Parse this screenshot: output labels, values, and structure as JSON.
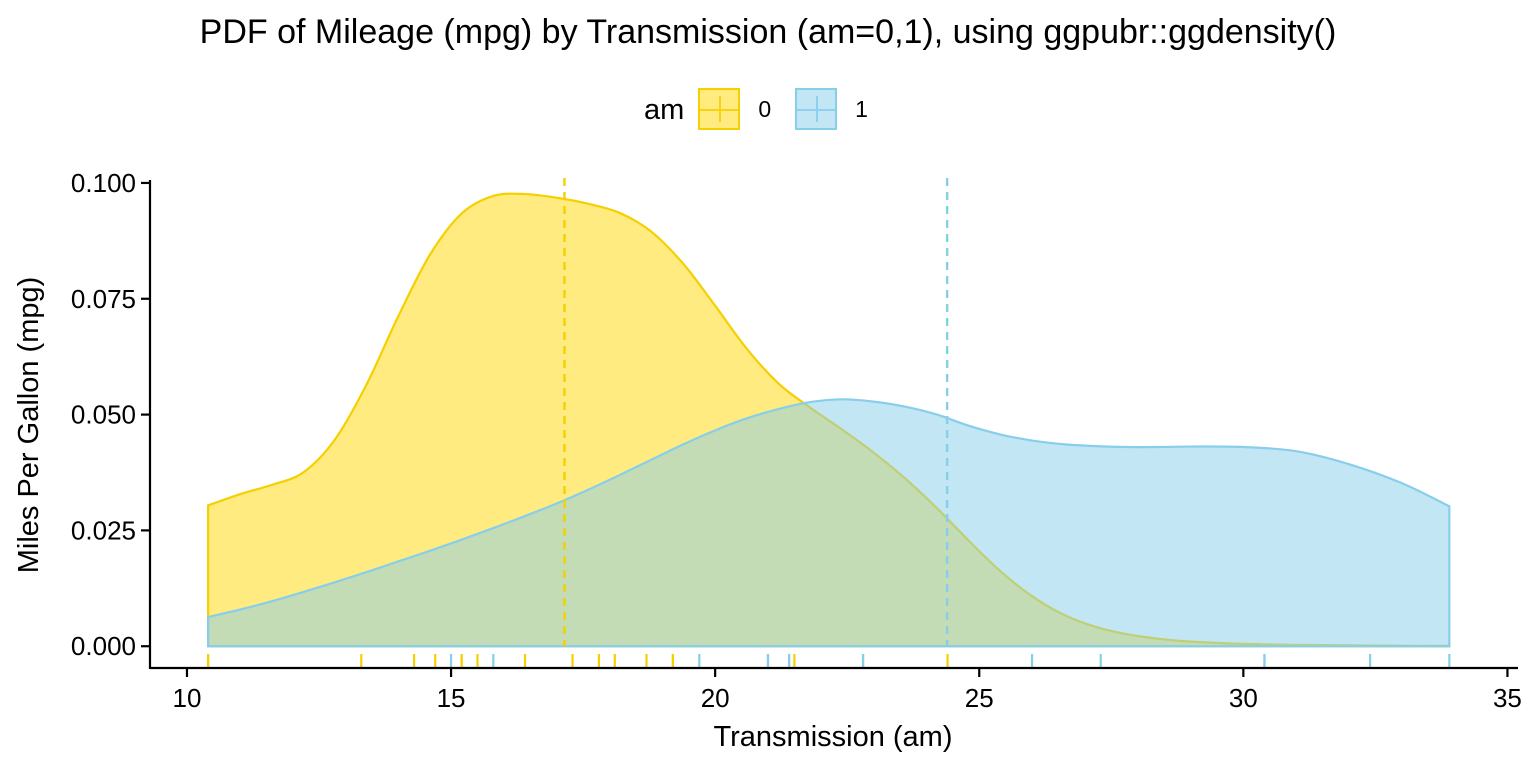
{
  "chart_data": {
    "type": "area",
    "title": "PDF of Mileage (mpg) by Transmission (am=0,1), using ggpubr::ggdensity()",
    "xlabel": "Transmission (am)",
    "ylabel": "Miles Per Gallon (mpg)",
    "xlim": [
      9.3,
      35.2
    ],
    "ylim": [
      -0.0047,
      0.1015
    ],
    "x_ticks": [
      10,
      15,
      20,
      25,
      30,
      35
    ],
    "x_tick_labels": [
      "10",
      "15",
      "20",
      "25",
      "30",
      "35"
    ],
    "y_ticks": [
      0,
      0.025,
      0.05,
      0.075,
      0.1
    ],
    "y_tick_labels": [
      "0.000",
      "0.025",
      "0.050",
      "0.075",
      "0.100"
    ],
    "legend": {
      "title": "am",
      "position": "top"
    },
    "grid": false,
    "series": [
      {
        "name": "0",
        "color": "#F5D000",
        "fill": "#FFD700",
        "mean": 17.147,
        "x": [
          10.4,
          11,
          11.6,
          12.2,
          12.8,
          13.4,
          14,
          14.6,
          15.2,
          15.8,
          16.4,
          17,
          17.6,
          18.2,
          18.8,
          19.4,
          20,
          20.6,
          21.2,
          21.8,
          22.4,
          23,
          23.6,
          24.2,
          24.8,
          25.4,
          26,
          26.6,
          27.2,
          27.8,
          28.4,
          29,
          30,
          31,
          32,
          33,
          33.9
        ],
        "y": [
          0.0304,
          0.0328,
          0.0348,
          0.0375,
          0.0446,
          0.0565,
          0.0712,
          0.0845,
          0.0934,
          0.0972,
          0.0976,
          0.0968,
          0.0955,
          0.0935,
          0.0894,
          0.0825,
          0.0735,
          0.0642,
          0.0567,
          0.0515,
          0.0468,
          0.0418,
          0.0362,
          0.0298,
          0.0228,
          0.0162,
          0.0108,
          0.0068,
          0.0042,
          0.0026,
          0.0016,
          0.001,
          0.0005,
          0.0003,
          0.0002,
          0.0001,
          0.0001
        ]
      },
      {
        "name": "1",
        "color": "#87CEEB",
        "fill": "#87CEEB",
        "mean": 24.392,
        "x": [
          10.4,
          11,
          11.6,
          12.2,
          12.8,
          13.4,
          14,
          14.6,
          15.2,
          15.8,
          16.4,
          17,
          17.6,
          18.2,
          18.8,
          19.4,
          20,
          20.6,
          21.2,
          21.8,
          22.4,
          23,
          23.6,
          24.2,
          24.8,
          25.4,
          26,
          26.6,
          27.2,
          27.8,
          28.4,
          29,
          30,
          31,
          32,
          33,
          33.9
        ],
        "y": [
          0.0063,
          0.0079,
          0.0097,
          0.0117,
          0.0138,
          0.016,
          0.0183,
          0.0206,
          0.023,
          0.0255,
          0.0281,
          0.0308,
          0.0338,
          0.037,
          0.0403,
          0.0436,
          0.0466,
          0.0492,
          0.0512,
          0.0527,
          0.0533,
          0.0528,
          0.0517,
          0.05,
          0.0476,
          0.0457,
          0.0444,
          0.0436,
          0.0432,
          0.043,
          0.043,
          0.0431,
          0.043,
          0.0421,
          0.0393,
          0.0352,
          0.0302
        ]
      }
    ],
    "rug": [
      {
        "series": "0",
        "x": [
          10.4,
          10.4,
          13.3,
          14.3,
          14.7,
          15.2,
          15.2,
          15.5,
          16.4,
          17.3,
          17.8,
          18.1,
          18.7,
          19.2,
          19.2,
          21.4,
          21.5,
          22.8,
          24.4
        ]
      },
      {
        "series": "1",
        "x": [
          15.0,
          15.8,
          19.7,
          21.0,
          21.0,
          21.4,
          22.8,
          26.0,
          27.3,
          30.4,
          30.4,
          32.4,
          33.9
        ]
      }
    ]
  }
}
